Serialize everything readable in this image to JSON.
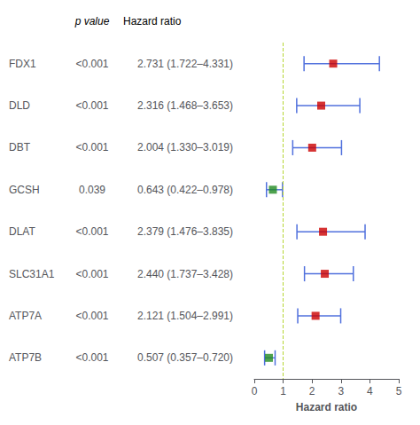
{
  "chart_data": {
    "type": "forest",
    "categories": [
      "FDX1",
      "DLD",
      "DBT",
      "GCSH",
      "DLAT",
      "SLC31A1",
      "ATP7A",
      "ATP7B"
    ],
    "values": [
      2.731,
      2.316,
      2.004,
      0.643,
      2.379,
      2.44,
      2.121,
      0.507
    ],
    "ci_low": [
      1.722,
      1.468,
      1.33,
      0.422,
      1.476,
      1.737,
      1.504,
      0.357
    ],
    "ci_high": [
      4.331,
      3.653,
      3.019,
      0.978,
      3.835,
      3.428,
      2.991,
      0.72
    ],
    "colors": [
      "#cc0000",
      "#cc0000",
      "#cc0000",
      "#228B22",
      "#cc0000",
      "#cc0000",
      "#cc0000",
      "#228B22"
    ],
    "p_values": [
      "<0.001",
      "<0.001",
      "<0.001",
      "0.039",
      "<0.001",
      "<0.001",
      "<0.001",
      "<0.001"
    ],
    "hr_labels": [
      "2.731 (1.722–4.331)",
      "2.316 (1.468–3.653)",
      "2.004 (1.330–3.019)",
      "0.643 (0.422–0.978)",
      "2.379 (1.476–3.835)",
      "2.440 (1.737–3.428)",
      "2.121 (1.504–2.991)",
      "0.507 (0.357–0.720)"
    ],
    "col_p_label": "p value",
    "col_hr_label": "Hazard ratio",
    "xlabel": "Hazard ratio",
    "reference_line": 1.0,
    "xlim": [
      0,
      5
    ],
    "xticks": [
      0,
      1,
      2,
      3,
      4,
      5
    ],
    "grid": false
  }
}
